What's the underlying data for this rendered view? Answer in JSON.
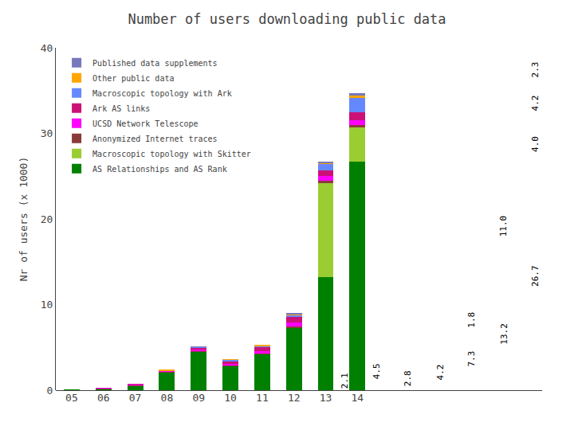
{
  "chart_data": {
    "type": "bar",
    "stacked": true,
    "title": "Number of users downloading public data",
    "ylabel": "Nr of users (x 1000)",
    "categories": [
      "05",
      "06",
      "07",
      "08",
      "09",
      "10",
      "11",
      "12",
      "13",
      "14"
    ],
    "series": [
      {
        "name": "AS Relationships and AS Rank",
        "color": "#008000",
        "values": [
          0.02,
          0.15,
          0.55,
          2.1,
          4.5,
          2.8,
          4.2,
          7.3,
          13.2,
          26.7
        ]
      },
      {
        "name": "Macroscopic topology with Skitter",
        "color": "#9acd32",
        "values": [
          0.0,
          0.0,
          0.0,
          0.0,
          0.0,
          0.0,
          0.0,
          0.0,
          11.0,
          4.0
        ]
      },
      {
        "name": "Anonymized Internet traces",
        "color": "#8b3a3a",
        "values": [
          0.0,
          0.05,
          0.05,
          0.05,
          0.1,
          0.05,
          0.1,
          0.15,
          0.3,
          0.3
        ]
      },
      {
        "name": "UCSD Network Telescope",
        "color": "#ff00ff",
        "values": [
          0.0,
          0.05,
          0.1,
          0.1,
          0.2,
          0.2,
          0.3,
          0.5,
          0.5,
          0.5
        ]
      },
      {
        "name": "Ark AS links",
        "color": "#cc1177",
        "values": [
          0.0,
          0.0,
          0.03,
          0.05,
          0.15,
          0.3,
          0.4,
          0.6,
          0.7,
          1.0
        ]
      },
      {
        "name": "Macroscopic topology with Ark",
        "color": "#6688ff",
        "values": [
          0.0,
          0.0,
          0.0,
          0.02,
          0.1,
          0.2,
          0.2,
          0.2,
          0.8,
          1.6
        ]
      },
      {
        "name": "Other public data",
        "color": "#ffa500",
        "values": [
          0.0,
          0.0,
          0.0,
          0.03,
          0.04,
          0.05,
          0.05,
          0.1,
          0.1,
          0.3
        ]
      },
      {
        "name": "Published data supplements",
        "color": "#7777bb",
        "values": [
          0.0,
          0.0,
          0.0,
          0.0,
          0.01,
          0.0,
          0.0,
          0.15,
          0.1,
          0.3
        ]
      }
    ],
    "annotations": [
      {
        "text": "2.1",
        "category": "08",
        "y": 1.05
      },
      {
        "text": "4.5",
        "category": "09",
        "y": 2.25
      },
      {
        "text": "2.8",
        "category": "10",
        "y": 1.4
      },
      {
        "text": "4.2",
        "category": "11",
        "y": 2.1
      },
      {
        "text": "7.3",
        "category": "12",
        "y": 3.65
      },
      {
        "text": "1.8",
        "category": "12",
        "y": 8.2
      },
      {
        "text": "13.2",
        "category": "13",
        "y": 6.6
      },
      {
        "text": "11.0",
        "category": "13",
        "y": 19.2
      },
      {
        "text": "26.7",
        "category": "14",
        "y": 13.35
      },
      {
        "text": "4.0",
        "category": "14",
        "y": 28.7
      },
      {
        "text": "4.2",
        "category": "14",
        "y": 33.5
      },
      {
        "text": "2.3",
        "category": "14",
        "y": 37.4
      }
    ],
    "ylim": [
      0,
      40
    ],
    "yticks": [
      0,
      10,
      20,
      30,
      40
    ],
    "grid": false,
    "legend": "upper left"
  }
}
